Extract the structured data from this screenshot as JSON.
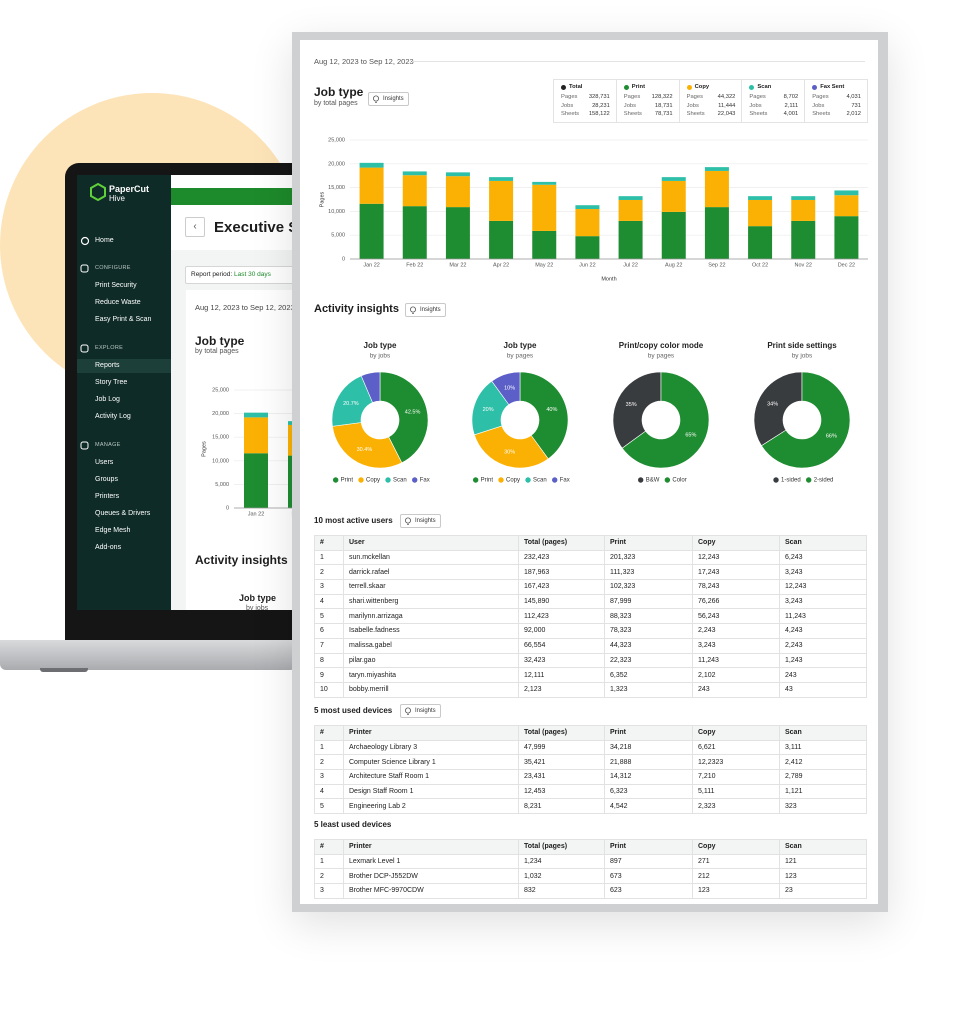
{
  "sidebar": {
    "brand": "PaperCut",
    "product": "Hive",
    "home": "Home",
    "sections": [
      {
        "heading": "CONFIGURE",
        "items": [
          "Print Security",
          "Reduce Waste",
          "Easy Print & Scan"
        ]
      },
      {
        "heading": "EXPLORE",
        "items": [
          "Reports",
          "Story Tree",
          "Job Log",
          "Activity Log"
        ]
      },
      {
        "heading": "MANAGE",
        "items": [
          "Users",
          "Groups",
          "Printers",
          "Queues & Drivers",
          "Edge Mesh",
          "Add-ons"
        ]
      }
    ]
  },
  "laptop": {
    "title": "Executive Summary",
    "period_label": "Report period:",
    "period_value": "Last 30 days"
  },
  "report": {
    "date_range": "Aug 12, 2023 to Sep 12, 2023",
    "insights_button": "Insights",
    "activity_title": "Activity insights",
    "tables": [
      {
        "title": "10 most active users",
        "insights": true,
        "headers": [
          "#",
          "User",
          "Total (pages)",
          "Print",
          "Copy",
          "Scan"
        ],
        "rows": [
          [
            "1",
            "sun.mckellan",
            "232,423",
            "201,323",
            "12,243",
            "6,243"
          ],
          [
            "2",
            "darrick.rafael",
            "187,963",
            "111,323",
            "17,243",
            "3,243"
          ],
          [
            "3",
            "terrell.skaar",
            "167,423",
            "102,323",
            "78,243",
            "12,243"
          ],
          [
            "4",
            "shari.wittenberg",
            "145,890",
            "87,999",
            "76,266",
            "3,243"
          ],
          [
            "5",
            "marilynn.arrizaga",
            "112,423",
            "88,323",
            "56,243",
            "11,243"
          ],
          [
            "6",
            "Isabelle.fadness",
            "92,000",
            "78,323",
            "2,243",
            "4,243"
          ],
          [
            "7",
            "malissa.gabel",
            "66,554",
            "44,323",
            "3,243",
            "2,243"
          ],
          [
            "8",
            "pilar.gao",
            "32,423",
            "22,323",
            "11,243",
            "1,243"
          ],
          [
            "9",
            "taryn.miyashita",
            "12,111",
            "6,352",
            "2,102",
            "243"
          ],
          [
            "10",
            "bobby.merrill",
            "2,123",
            "1,323",
            "243",
            "43"
          ]
        ]
      },
      {
        "title": "5 most used devices",
        "insights": true,
        "headers": [
          "#",
          "Printer",
          "Total (pages)",
          "Print",
          "Copy",
          "Scan"
        ],
        "rows": [
          [
            "1",
            "Archaeology Library 3",
            "47,999",
            "34,218",
            "6,621",
            "3,111"
          ],
          [
            "2",
            "Computer Science Library 1",
            "35,421",
            "21,888",
            "12,2323",
            "2,412"
          ],
          [
            "3",
            "Architecture Staff Room 1",
            "23,431",
            "14,312",
            "7,210",
            "2,789"
          ],
          [
            "4",
            "Design Staff Room 1",
            "12,453",
            "6,323",
            "5,111",
            "1,121"
          ],
          [
            "5",
            "Engineering Lab 2",
            "8,231",
            "4,542",
            "2,323",
            "323"
          ]
        ]
      },
      {
        "title": "5 least used devices",
        "insights": false,
        "headers": [
          "#",
          "Printer",
          "Total (pages)",
          "Print",
          "Copy",
          "Scan"
        ],
        "rows": [
          [
            "1",
            "Lexmark Level 1",
            "1,234",
            "897",
            "271",
            "121"
          ],
          [
            "2",
            "Brother DCP-J552DW",
            "1,032",
            "673",
            "212",
            "123"
          ],
          [
            "3",
            "Brother MFC-9970CDW",
            "832",
            "623",
            "123",
            "23"
          ]
        ]
      }
    ]
  },
  "chart_data": [
    {
      "type": "bar",
      "stacked": true,
      "title": "Job type",
      "subtitle": "by total pages",
      "x_label": "Month",
      "y_label": "Pages",
      "categories": [
        "Jan 22",
        "Feb 22",
        "Mar 22",
        "Apr 22",
        "May 22",
        "Jun 22",
        "Jul 22",
        "Aug 22",
        "Sep 22",
        "Oct 22",
        "Nov 22",
        "Dec 22"
      ],
      "series": [
        {
          "name": "Print",
          "color": "#1e8c30",
          "values": [
            11600,
            11100,
            10900,
            8000,
            5900,
            4800,
            8000,
            9900,
            10900,
            6900,
            8000,
            9000
          ],
          "stats": [
            "128,322",
            "18,731",
            "78,731"
          ]
        },
        {
          "name": "Copy",
          "color": "#fbb103",
          "values": [
            7600,
            6500,
            6500,
            8400,
            9700,
            5700,
            4400,
            6500,
            7600,
            5500,
            4400,
            4400
          ],
          "stats": [
            "44,322",
            "11,444",
            "22,043"
          ]
        },
        {
          "name": "Scan",
          "color": "#2dbfa7",
          "values": [
            1000,
            800,
            800,
            800,
            600,
            800,
            800,
            800,
            800,
            800,
            800,
            1000
          ],
          "stats": [
            "8,702",
            "2,111",
            "4,001"
          ]
        }
      ],
      "stat_labels": [
        "Pages",
        "Jobs",
        "Sheets"
      ],
      "extra_stats": [
        {
          "name": "Total",
          "color": "#222222",
          "stats": [
            "328,731",
            "28,231",
            "158,122"
          ]
        },
        {
          "name": "Fax Sent",
          "color": "#5b5fc7",
          "stats": [
            "4,031",
            "731",
            "2,012"
          ]
        }
      ],
      "ylim": [
        0,
        25000
      ],
      "yticks": [
        0,
        {
          "value": 5000,
          "label": "5,000"
        },
        {
          "value": 10000,
          "label": "10,000"
        },
        {
          "value": 15000,
          "label": "15,000"
        },
        {
          "value": 20000,
          "label": "20,000"
        },
        {
          "value": 25000,
          "label": "25,000"
        }
      ],
      "grid": true
    },
    {
      "type": "donut",
      "title": "Job type",
      "subtitle": "by jobs",
      "direction": "clockwise",
      "categories": [
        "Print",
        "Copy",
        "Scan",
        "Fax"
      ],
      "colors": [
        "#1e8c30",
        "#fbb103",
        "#2dbfa7",
        "#5b5fc7"
      ],
      "values": [
        42.5,
        30.4,
        20.7,
        6.4
      ],
      "value_labels": [
        "42.5%",
        "30.4%",
        "20.7%",
        null
      ]
    },
    {
      "type": "donut",
      "title": "Job type",
      "subtitle": "by pages",
      "direction": "clockwise",
      "categories": [
        "Print",
        "Copy",
        "Scan",
        "Fax"
      ],
      "colors": [
        "#1e8c30",
        "#fbb103",
        "#2dbfa7",
        "#5b5fc7"
      ],
      "values": [
        40,
        30,
        20,
        10
      ],
      "value_labels": [
        "40%",
        "30%",
        "20%",
        "10%"
      ]
    },
    {
      "type": "donut",
      "title": "Print/copy color mode",
      "subtitle": "by pages",
      "direction": "counterclockwise",
      "categories": [
        "B&W",
        "Color"
      ],
      "colors": [
        "#393c3f",
        "#1e8c30"
      ],
      "values": [
        35,
        65
      ],
      "value_labels": [
        "35%",
        "65%"
      ]
    },
    {
      "type": "donut",
      "title": "Print side settings",
      "subtitle": "by jobs",
      "direction": "counterclockwise",
      "categories": [
        "1-sided",
        "2-sided"
      ],
      "colors": [
        "#393c3f",
        "#1e8c30"
      ],
      "values": [
        34,
        66
      ],
      "value_labels": [
        "34%",
        "66%"
      ]
    }
  ]
}
